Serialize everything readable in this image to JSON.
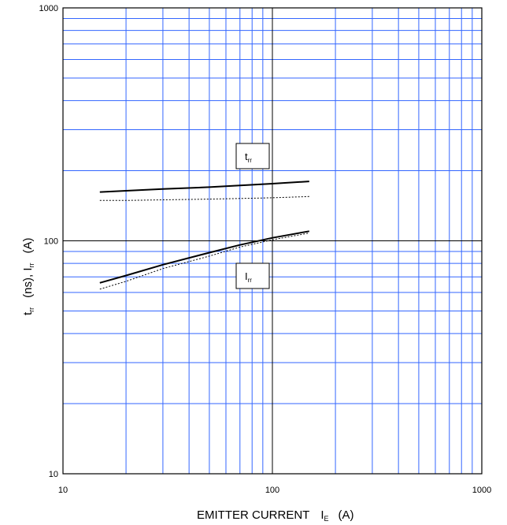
{
  "chart_data": {
    "type": "line",
    "xscale": "log",
    "yscale": "log",
    "xlim": [
      10,
      1000
    ],
    "ylim": [
      10,
      1000
    ],
    "grid": true,
    "colors": {
      "grid_minor": "#3366ff",
      "grid_major": "#000000",
      "line": "#000000"
    },
    "x_ticks": [
      "10",
      "100",
      "1000"
    ],
    "y_ticks": [
      "10",
      "100",
      "1000"
    ],
    "xlabel": {
      "main": "EMITTER CURRENT",
      "sym": "I",
      "sub": "E",
      "unit": "(A)"
    },
    "ylabel": {
      "sym1": "t",
      "sub1": "rr",
      "mid": "(ns), I",
      "sub2": "rr",
      "unit": "(A)"
    },
    "series": [
      {
        "name": "trr",
        "style": "solid",
        "x": [
          15,
          20,
          30,
          50,
          70,
          100,
          150
        ],
        "y": [
          162,
          164,
          167,
          170,
          173,
          176,
          180
        ]
      },
      {
        "name": "trr-dotted",
        "style": "dotted",
        "x": [
          15,
          20,
          30,
          50,
          70,
          100,
          150
        ],
        "y": [
          149,
          149,
          150,
          151,
          152,
          153,
          155
        ]
      },
      {
        "name": "Irr",
        "style": "solid",
        "x": [
          15,
          20,
          30,
          50,
          70,
          100,
          150
        ],
        "y": [
          66,
          71,
          79,
          89,
          96,
          103,
          110
        ]
      },
      {
        "name": "Irr-dotted",
        "style": "dotted",
        "x": [
          15,
          20,
          30,
          50,
          70,
          100,
          150
        ],
        "y": [
          62,
          67,
          76,
          86,
          94,
          101,
          108
        ]
      }
    ],
    "annotations": [
      {
        "sym": "t",
        "sub": "rr"
      },
      {
        "sym": "I",
        "sub": "rr"
      }
    ]
  }
}
